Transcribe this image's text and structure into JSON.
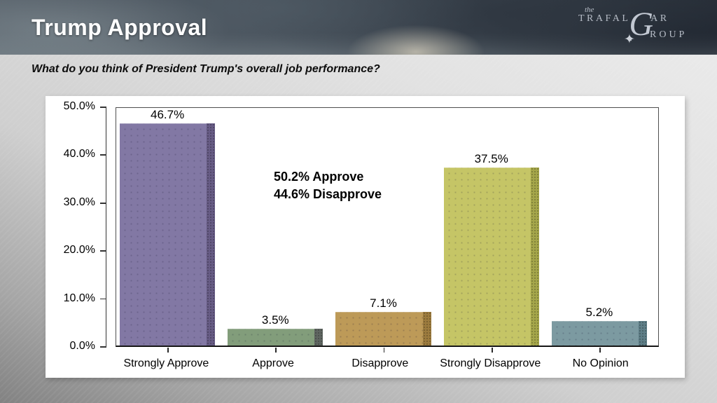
{
  "header": {
    "title": "Trump Approval",
    "logo": {
      "prefix": "the",
      "word1_left": "TRAFAL",
      "word1_g": "G",
      "word1_right": "AR",
      "word2": "ROUP",
      "star_glyph": "✦"
    }
  },
  "question": "What do you think of President Trump's overall job performance?",
  "chart_data": {
    "type": "bar",
    "title": "",
    "categories": [
      "Strongly Approve",
      "Approve",
      "Disapprove",
      "Strongly Disapprove",
      "No Opinion"
    ],
    "values": [
      46.7,
      3.5,
      7.1,
      37.5,
      5.2
    ],
    "value_labels": [
      "46.7%",
      "3.5%",
      "7.1%",
      "37.5%",
      "5.2%"
    ],
    "bar_colors": [
      "#8278A4",
      "#829D7B",
      "#BD9A58",
      "#C5C566",
      "#7C9AA1"
    ],
    "bar_edge_colors": [
      "#675C85",
      "#5F6661",
      "#9C7B3E",
      "#A5A64A",
      "#5E7E87"
    ],
    "xlabel": "",
    "ylabel": "",
    "ylim": [
      0,
      50
    ],
    "ytick_labels": [
      "50.0%",
      "40.0%",
      "30.0%",
      "20.0%",
      "10.0%",
      "0.0%"
    ],
    "ytick_values": [
      50,
      40,
      30,
      20,
      10,
      0
    ],
    "grid": false,
    "legend": false,
    "annotation": {
      "line1": "50.2% Approve",
      "line2": "44.6% Disapprove"
    }
  }
}
